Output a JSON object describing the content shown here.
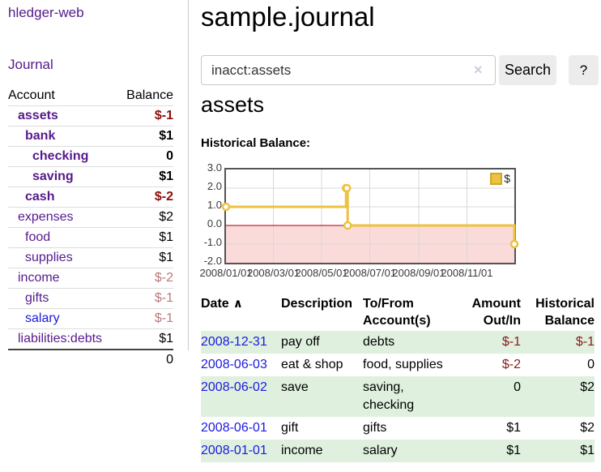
{
  "app": {
    "title": "hledger-web"
  },
  "theme": {
    "link_purple": "#551a8b",
    "link_blue": "#1a1adf",
    "negative_strong": "#8b0d0d",
    "negative_soft": "#b87a7a",
    "table_negative": "#8b1a1a",
    "row_stripe_green": "#dff0df",
    "button_gray": "#ececec",
    "chart_gold": "#edc240"
  },
  "sidebar": {
    "nav": {
      "journal_label": "Journal"
    },
    "accounts_table": {
      "headers": {
        "account": "Account",
        "balance": "Balance"
      },
      "rows": [
        {
          "name": "assets",
          "depth": 1,
          "bold": true,
          "balance": "$-1",
          "balance_class": "neg-strong",
          "link": "purple"
        },
        {
          "name": "bank",
          "depth": 2,
          "bold": true,
          "balance": "$1",
          "balance_class": "",
          "link": "purple"
        },
        {
          "name": "checking",
          "depth": 3,
          "bold": true,
          "balance": "0",
          "balance_class": "",
          "link": "purple"
        },
        {
          "name": "saving",
          "depth": 3,
          "bold": true,
          "balance": "$1",
          "balance_class": "",
          "link": "purple"
        },
        {
          "name": "cash",
          "depth": 2,
          "bold": true,
          "balance": "$-2",
          "balance_class": "neg-strong",
          "link": "purple"
        },
        {
          "name": "expenses",
          "depth": 1,
          "bold": false,
          "balance": "$2",
          "balance_class": "",
          "link": "purple"
        },
        {
          "name": "food",
          "depth": 2,
          "bold": false,
          "balance": "$1",
          "balance_class": "",
          "link": "purple"
        },
        {
          "name": "supplies",
          "depth": 2,
          "bold": false,
          "balance": "$1",
          "balance_class": "",
          "link": "purple"
        },
        {
          "name": "income",
          "depth": 1,
          "bold": false,
          "balance": "$-2",
          "balance_class": "neg-soft",
          "link": "purple"
        },
        {
          "name": "gifts",
          "depth": 2,
          "bold": false,
          "balance": "$-1",
          "balance_class": "neg-soft",
          "link": "purple"
        },
        {
          "name": "salary",
          "depth": 2,
          "bold": false,
          "balance": "$-1",
          "balance_class": "neg-soft",
          "link": "blue"
        },
        {
          "name": "liabilities:debts",
          "depth": 1,
          "bold": false,
          "balance": "$1",
          "balance_class": "",
          "link": "purple"
        }
      ],
      "total": "0"
    }
  },
  "main": {
    "title": "sample.journal",
    "search": {
      "value": "inacct:assets",
      "clear_icon": "×",
      "button_label": "Search",
      "help_label": "?"
    },
    "account_heading": "assets",
    "chart_label": "Historical Balance:"
  },
  "chart_data": {
    "type": "line",
    "step": true,
    "series": [
      {
        "name": "$",
        "color": "#edc240",
        "points": [
          [
            "2008-01-01",
            1
          ],
          [
            "2008-06-01",
            2
          ],
          [
            "2008-06-02",
            2
          ],
          [
            "2008-06-03",
            0
          ],
          [
            "2008-12-31",
            -1
          ]
        ]
      }
    ],
    "xlim": [
      "2008-01-01",
      "2008-12-31"
    ],
    "ylim": [
      -2,
      3
    ],
    "y_ticks": [
      {
        "label": "3.0",
        "value": 3
      },
      {
        "label": "2.0",
        "value": 2
      },
      {
        "label": "1.0",
        "value": 1
      },
      {
        "label": "0.0",
        "value": 0
      },
      {
        "label": "-1.0",
        "value": -1
      },
      {
        "label": "-2.0",
        "value": -2
      }
    ],
    "x_ticks": [
      {
        "label": "2008/01/01",
        "date": "2008-01-01"
      },
      {
        "label": "2008/03/01",
        "date": "2008-03-01"
      },
      {
        "label": "2008/05/01",
        "date": "2008-05-01"
      },
      {
        "label": "2008/07/01",
        "date": "2008-07-01"
      },
      {
        "label": "2008/09/01",
        "date": "2008-09-01"
      },
      {
        "label": "2008/11/01",
        "date": "2008-11-01"
      }
    ],
    "grid": true,
    "legend_position": "top-right",
    "zero_line_color": "#aa0000",
    "negative_region_fill": "#fbdada"
  },
  "table": {
    "headers": {
      "date": "Date",
      "description": "Description",
      "accounts": "To/From Account(s)",
      "amount": "Amount Out/In",
      "balance": "Historical Balance"
    },
    "sort_icon": "∧",
    "rows": [
      {
        "date": "2008-12-31",
        "description": "pay off",
        "accounts": "debts",
        "amount": "$-1",
        "amount_negative": true,
        "balance": "$-1",
        "balance_negative": true
      },
      {
        "date": "2008-06-03",
        "description": "eat & shop",
        "accounts": "food, supplies",
        "amount": "$-2",
        "amount_negative": true,
        "balance": "0",
        "balance_negative": false
      },
      {
        "date": "2008-06-02",
        "description": "save",
        "accounts": "saving, checking",
        "amount": "0",
        "amount_negative": false,
        "balance": "$2",
        "balance_negative": false
      },
      {
        "date": "2008-06-01",
        "description": "gift",
        "accounts": "gifts",
        "amount": "$1",
        "amount_negative": false,
        "balance": "$2",
        "balance_negative": false
      },
      {
        "date": "2008-01-01",
        "description": "income",
        "accounts": "salary",
        "amount": "$1",
        "amount_negative": false,
        "balance": "$1",
        "balance_negative": false
      }
    ]
  }
}
